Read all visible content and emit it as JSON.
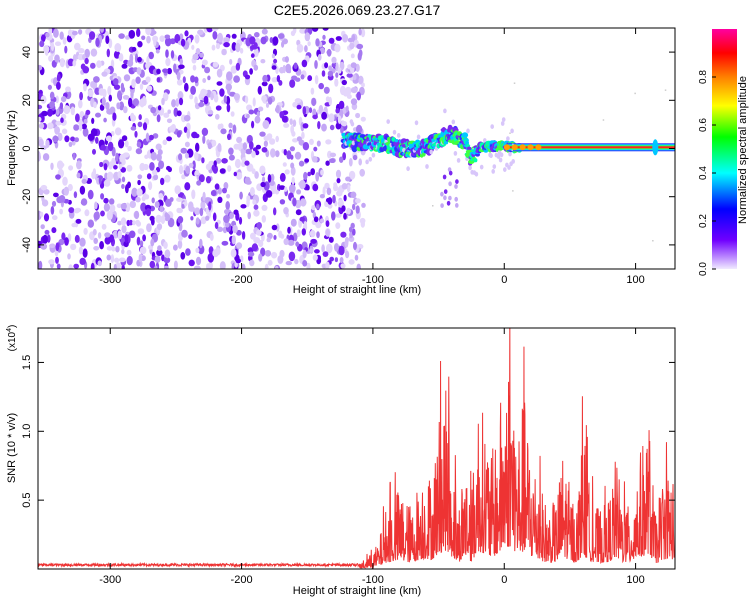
{
  "title": "C2E5.2026.069.23.27.G17",
  "chart_data": [
    {
      "type": "heatmap",
      "name": "spectrogram",
      "xlabel": "Height of straight line (km)",
      "ylabel": "Frequency (Hz)",
      "xlim": [
        -355,
        130
      ],
      "ylim": [
        -50,
        50
      ],
      "xticks": [
        -300,
        -200,
        -100,
        0,
        100
      ],
      "xtick_labels": [
        "-300",
        "-200",
        "-100",
        "0",
        "100"
      ],
      "yticks": [
        -40,
        -20,
        0,
        20,
        40
      ],
      "ytick_labels": [
        "-40",
        "-20",
        "0",
        "20",
        "40"
      ],
      "noise_region_km": [
        -355,
        -115
      ],
      "signal_track_km": [
        -120,
        -90,
        -80,
        -60,
        -50,
        -40,
        -30,
        -25,
        -20,
        -10,
        0,
        10,
        20,
        40,
        60,
        80,
        100,
        115,
        130
      ],
      "signal_track_hz": [
        3,
        2,
        0,
        0,
        4,
        6,
        3,
        -5,
        0,
        1,
        1,
        0.5,
        0.5,
        0.5,
        0.5,
        0.5,
        0.5,
        0.5,
        0.5
      ],
      "colorbar": {
        "label": "Normalized spectral amplitude",
        "range": [
          0,
          1
        ],
        "ticks": [
          0.0,
          0.2,
          0.4,
          0.6,
          0.8
        ],
        "tick_labels": [
          "0.0",
          "0.2",
          "0.4",
          "0.6",
          "0.8"
        ],
        "colors": [
          "#f0eaff",
          "#7000ff",
          "#0000ff",
          "#00ffff",
          "#00ff00",
          "#ffff00",
          "#ff8000",
          "#ff0000",
          "#ff00a0"
        ]
      }
    },
    {
      "type": "line",
      "name": "snr",
      "xlabel": "Height of straight line (km)",
      "ylabel": "SNR (10 * v/v)",
      "ylabel_scale": "(x10^4)",
      "ylabel_scale_base": "(x10",
      "ylabel_scale_exp": "4",
      "ylabel_scale_close": ")",
      "xlim": [
        -355,
        130
      ],
      "ylim": [
        0.0,
        1.75
      ],
      "xticks": [
        -300,
        -200,
        -100,
        0,
        100
      ],
      "xtick_labels": [
        "-300",
        "-200",
        "-100",
        "0",
        "100"
      ],
      "yticks": [
        0.5,
        1.0,
        1.5
      ],
      "ytick_labels": [
        "0.5",
        "1.0",
        "1.5"
      ],
      "color": "#ee3333",
      "series": [
        {
          "name": "SNR",
          "x": [
            -355,
            -300,
            -250,
            -200,
            -150,
            -110,
            -100,
            -95,
            -90,
            -85,
            -80,
            -75,
            -70,
            -65,
            -60,
            -55,
            -50,
            -45,
            -40,
            -35,
            -30,
            -25,
            -20,
            -15,
            -10,
            -5,
            0,
            5,
            10,
            15,
            20,
            25,
            30,
            35,
            40,
            45,
            50,
            55,
            60,
            65,
            70,
            75,
            80,
            85,
            90,
            95,
            100,
            105,
            110,
            115,
            120,
            125,
            130
          ],
          "y": [
            0.03,
            0.03,
            0.03,
            0.03,
            0.03,
            0.03,
            0.08,
            0.15,
            0.3,
            0.35,
            0.4,
            0.35,
            0.3,
            0.45,
            0.5,
            0.45,
            0.75,
            0.9,
            0.6,
            0.3,
            0.6,
            0.35,
            0.85,
            0.75,
            0.55,
            0.7,
            1.0,
            1.1,
            0.7,
            0.85,
            0.6,
            0.5,
            0.35,
            0.3,
            0.35,
            0.6,
            0.4,
            0.3,
            0.7,
            0.4,
            0.3,
            0.3,
            0.35,
            0.55,
            0.35,
            0.3,
            0.5,
            0.6,
            0.75,
            0.25,
            0.45,
            0.5,
            0.45
          ]
        }
      ]
    }
  ]
}
